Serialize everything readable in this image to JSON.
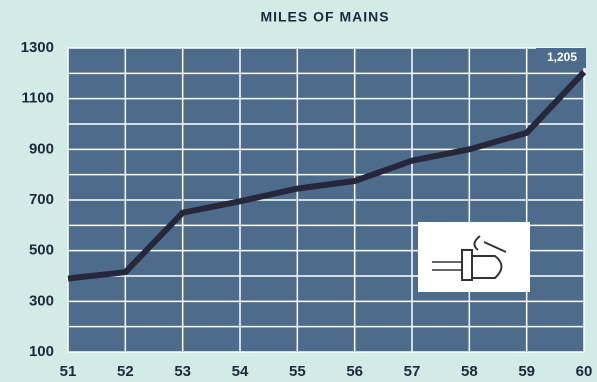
{
  "chart_data": {
    "type": "line",
    "title": "MILES OF MAINS",
    "x": [
      51,
      52,
      53,
      54,
      55,
      56,
      57,
      58,
      59,
      60
    ],
    "xlim": [
      51,
      60
    ],
    "xticks": [
      51,
      52,
      53,
      54,
      55,
      56,
      57,
      58,
      59,
      60
    ],
    "ylim": [
      100,
      1300
    ],
    "yticks": [
      100,
      300,
      500,
      700,
      900,
      1100,
      1300
    ],
    "y_minor_ticks": [
      200,
      400,
      600,
      800,
      1000,
      1200
    ],
    "grid": true,
    "plot_background": "#4d6b8b",
    "grid_color": "#ffffff",
    "series": [
      {
        "color": "#26273a",
        "values": [
          390,
          415,
          650,
          695,
          745,
          775,
          855,
          900,
          965,
          1205
        ],
        "value_labels": [
          null,
          null,
          null,
          null,
          null,
          null,
          null,
          null,
          null,
          "1,205"
        ]
      }
    ]
  }
}
